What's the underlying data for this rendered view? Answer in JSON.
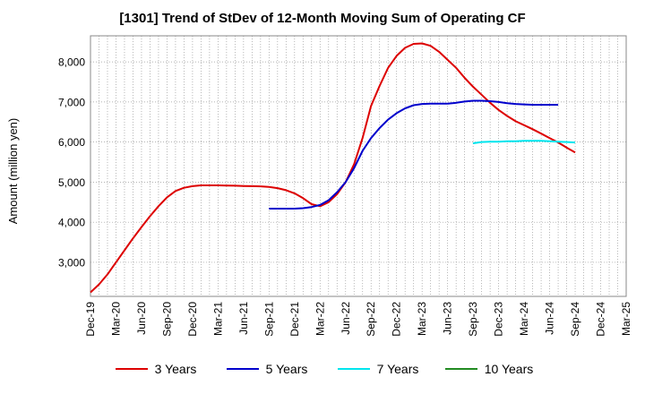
{
  "chart_data": {
    "type": "line",
    "title": "[1301]  Trend of StDev of 12-Month Moving Sum of Operating CF",
    "xlabel": "",
    "ylabel": "Amount (million yen)",
    "ylim": [
      2150,
      8650
    ],
    "yticks": [
      3000,
      4000,
      5000,
      6000,
      7000,
      8000
    ],
    "ytick_labels": [
      "3,000",
      "4,000",
      "5,000",
      "6,000",
      "7,000",
      "8,000"
    ],
    "categories": [
      "Dec-19",
      "Mar-20",
      "Jun-20",
      "Sep-20",
      "Dec-20",
      "Mar-21",
      "Jun-21",
      "Sep-21",
      "Dec-21",
      "Mar-22",
      "Jun-22",
      "Sep-22",
      "Dec-22",
      "Mar-23",
      "Jun-23",
      "Sep-23",
      "Dec-23",
      "Mar-24",
      "Jun-24",
      "Sep-24",
      "Dec-24",
      "Mar-25"
    ],
    "grid": true,
    "legend_position": "bottom",
    "series": [
      {
        "name": "3 Years",
        "color": "#dd0000",
        "points": [
          [
            "Dec-19",
            2250
          ],
          [
            "Jan-20",
            2450
          ],
          [
            "Feb-20",
            2700
          ],
          [
            "Mar-20",
            3000
          ],
          [
            "Apr-20",
            3300
          ],
          [
            "May-20",
            3600
          ],
          [
            "Jun-20",
            3880
          ],
          [
            "Jul-20",
            4150
          ],
          [
            "Aug-20",
            4400
          ],
          [
            "Sep-20",
            4620
          ],
          [
            "Oct-20",
            4780
          ],
          [
            "Nov-20",
            4860
          ],
          [
            "Dec-20",
            4900
          ],
          [
            "Jan-21",
            4920
          ],
          [
            "Feb-21",
            4920
          ],
          [
            "Mar-21",
            4920
          ],
          [
            "Apr-21",
            4915
          ],
          [
            "May-21",
            4910
          ],
          [
            "Jun-21",
            4905
          ],
          [
            "Jul-21",
            4900
          ],
          [
            "Aug-21",
            4895
          ],
          [
            "Sep-21",
            4880
          ],
          [
            "Oct-21",
            4850
          ],
          [
            "Nov-21",
            4800
          ],
          [
            "Dec-21",
            4720
          ],
          [
            "Jan-22",
            4600
          ],
          [
            "Feb-22",
            4450
          ],
          [
            "Mar-22",
            4400
          ],
          [
            "Apr-22",
            4500
          ],
          [
            "May-22",
            4700
          ],
          [
            "Jun-22",
            5000
          ],
          [
            "Jul-22",
            5450
          ],
          [
            "Aug-22",
            6100
          ],
          [
            "Sep-22",
            6900
          ],
          [
            "Oct-22",
            7400
          ],
          [
            "Nov-22",
            7850
          ],
          [
            "Dec-22",
            8150
          ],
          [
            "Jan-23",
            8350
          ],
          [
            "Feb-23",
            8450
          ],
          [
            "Mar-23",
            8460
          ],
          [
            "Apr-23",
            8400
          ],
          [
            "May-23",
            8250
          ],
          [
            "Jun-23",
            8050
          ],
          [
            "Jul-23",
            7850
          ],
          [
            "Aug-23",
            7600
          ],
          [
            "Sep-23",
            7380
          ],
          [
            "Oct-23",
            7180
          ],
          [
            "Nov-23",
            6980
          ],
          [
            "Dec-23",
            6800
          ],
          [
            "Jan-24",
            6650
          ],
          [
            "Feb-24",
            6520
          ],
          [
            "Mar-24",
            6420
          ],
          [
            "Apr-24",
            6320
          ],
          [
            "May-24",
            6210
          ],
          [
            "Jun-24",
            6100
          ],
          [
            "Jul-24",
            5990
          ],
          [
            "Aug-24",
            5860
          ],
          [
            "Sep-24",
            5740
          ]
        ]
      },
      {
        "name": "5 Years",
        "color": "#0000cc",
        "points": [
          [
            "Sep-21",
            4340
          ],
          [
            "Oct-21",
            4340
          ],
          [
            "Nov-21",
            4340
          ],
          [
            "Dec-21",
            4340
          ],
          [
            "Jan-22",
            4350
          ],
          [
            "Feb-22",
            4380
          ],
          [
            "Mar-22",
            4430
          ],
          [
            "Apr-22",
            4550
          ],
          [
            "May-22",
            4750
          ],
          [
            "Jun-22",
            5000
          ],
          [
            "Jul-22",
            5350
          ],
          [
            "Aug-22",
            5780
          ],
          [
            "Sep-22",
            6100
          ],
          [
            "Oct-22",
            6350
          ],
          [
            "Nov-22",
            6560
          ],
          [
            "Dec-22",
            6720
          ],
          [
            "Jan-23",
            6840
          ],
          [
            "Feb-23",
            6920
          ],
          [
            "Mar-23",
            6950
          ],
          [
            "Apr-23",
            6960
          ],
          [
            "May-23",
            6960
          ],
          [
            "Jun-23",
            6960
          ],
          [
            "Jul-23",
            6980
          ],
          [
            "Aug-23",
            7010
          ],
          [
            "Sep-23",
            7030
          ],
          [
            "Oct-23",
            7030
          ],
          [
            "Nov-23",
            7020
          ],
          [
            "Dec-23",
            7000
          ],
          [
            "Jan-24",
            6970
          ],
          [
            "Feb-24",
            6950
          ],
          [
            "Mar-24",
            6940
          ],
          [
            "Apr-24",
            6930
          ],
          [
            "May-24",
            6930
          ],
          [
            "Jun-24",
            6930
          ],
          [
            "Jul-24",
            6930
          ]
        ]
      },
      {
        "name": "7 Years",
        "color": "#00e5ee",
        "points": [
          [
            "Sep-23",
            5970
          ],
          [
            "Oct-23",
            6000
          ],
          [
            "Nov-23",
            6010
          ],
          [
            "Dec-23",
            6010
          ],
          [
            "Jan-24",
            6020
          ],
          [
            "Feb-24",
            6020
          ],
          [
            "Mar-24",
            6030
          ],
          [
            "Apr-24",
            6030
          ],
          [
            "May-24",
            6030
          ],
          [
            "Jun-24",
            6020
          ],
          [
            "Jul-24",
            6010
          ],
          [
            "Aug-24",
            6000
          ],
          [
            "Sep-24",
            5990
          ]
        ]
      },
      {
        "name": "10 Years",
        "color": "#228b22",
        "points": []
      }
    ]
  }
}
